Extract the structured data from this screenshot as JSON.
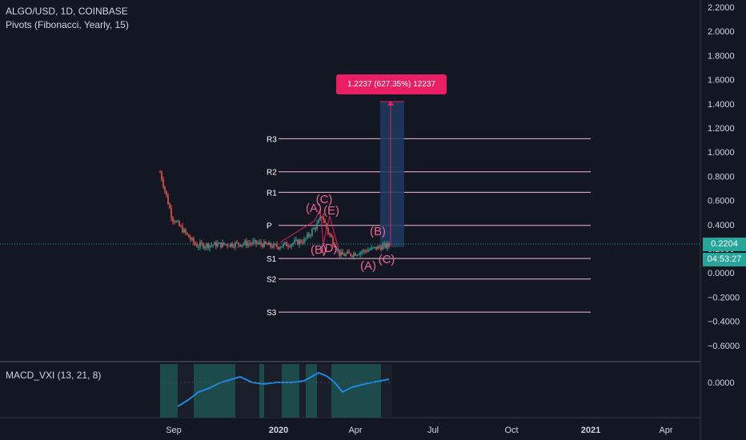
{
  "header": {
    "symbol_line": "ALGO/USD, 1D, COINBASE",
    "indicator_line": "Pivots (Fibonacci, Yearly, 15)"
  },
  "macd": {
    "label": "MACD_VXI (13, 21, 8)",
    "value": "0.0000"
  },
  "price_axis": {
    "ticks": [
      "2.2000",
      "2.0000",
      "1.8000",
      "1.6000",
      "1.4000",
      "1.2000",
      "1.0000",
      "0.8000",
      "0.6000",
      "0.4000",
      "0.2000",
      "0.0000",
      "−0.2000",
      "−0.4000",
      "−0.6000"
    ]
  },
  "current_price": {
    "value": "0.2204",
    "countdown": "04:53:27"
  },
  "time_axis": {
    "labels": [
      "Sep",
      "2020",
      "Apr",
      "Jul",
      "Oct",
      "2021",
      "Apr"
    ]
  },
  "pivot_levels": [
    {
      "label": "R3",
      "price": 1.1075
    },
    {
      "label": "R2",
      "price": 0.8323
    },
    {
      "label": "R1",
      "price": 0.6623
    },
    {
      "label": "P",
      "price": 0.3871
    },
    {
      "label": "S1",
      "price": 0.1119
    },
    {
      "label": "S2",
      "price": -0.0581
    },
    {
      "label": "S3",
      "price": -0.3333
    }
  ],
  "wave_labels": [
    "(A)",
    "(C)",
    "(E)",
    "(B)",
    "(D)",
    "(B)",
    "(A)",
    "(C)"
  ],
  "measure": {
    "text": "1.2237 (627.35%) 12237"
  },
  "colors": {
    "background": "#131722",
    "pivot_line": "#f8bbd0",
    "wave_label": "#f06292",
    "measure": "#e91e63",
    "macd_line_up": "#1e88e5",
    "macd_line_down": "#e53935",
    "price_tag": "#26a69a",
    "up_candle": "#26a69a",
    "down_candle": "#ef5350"
  }
}
